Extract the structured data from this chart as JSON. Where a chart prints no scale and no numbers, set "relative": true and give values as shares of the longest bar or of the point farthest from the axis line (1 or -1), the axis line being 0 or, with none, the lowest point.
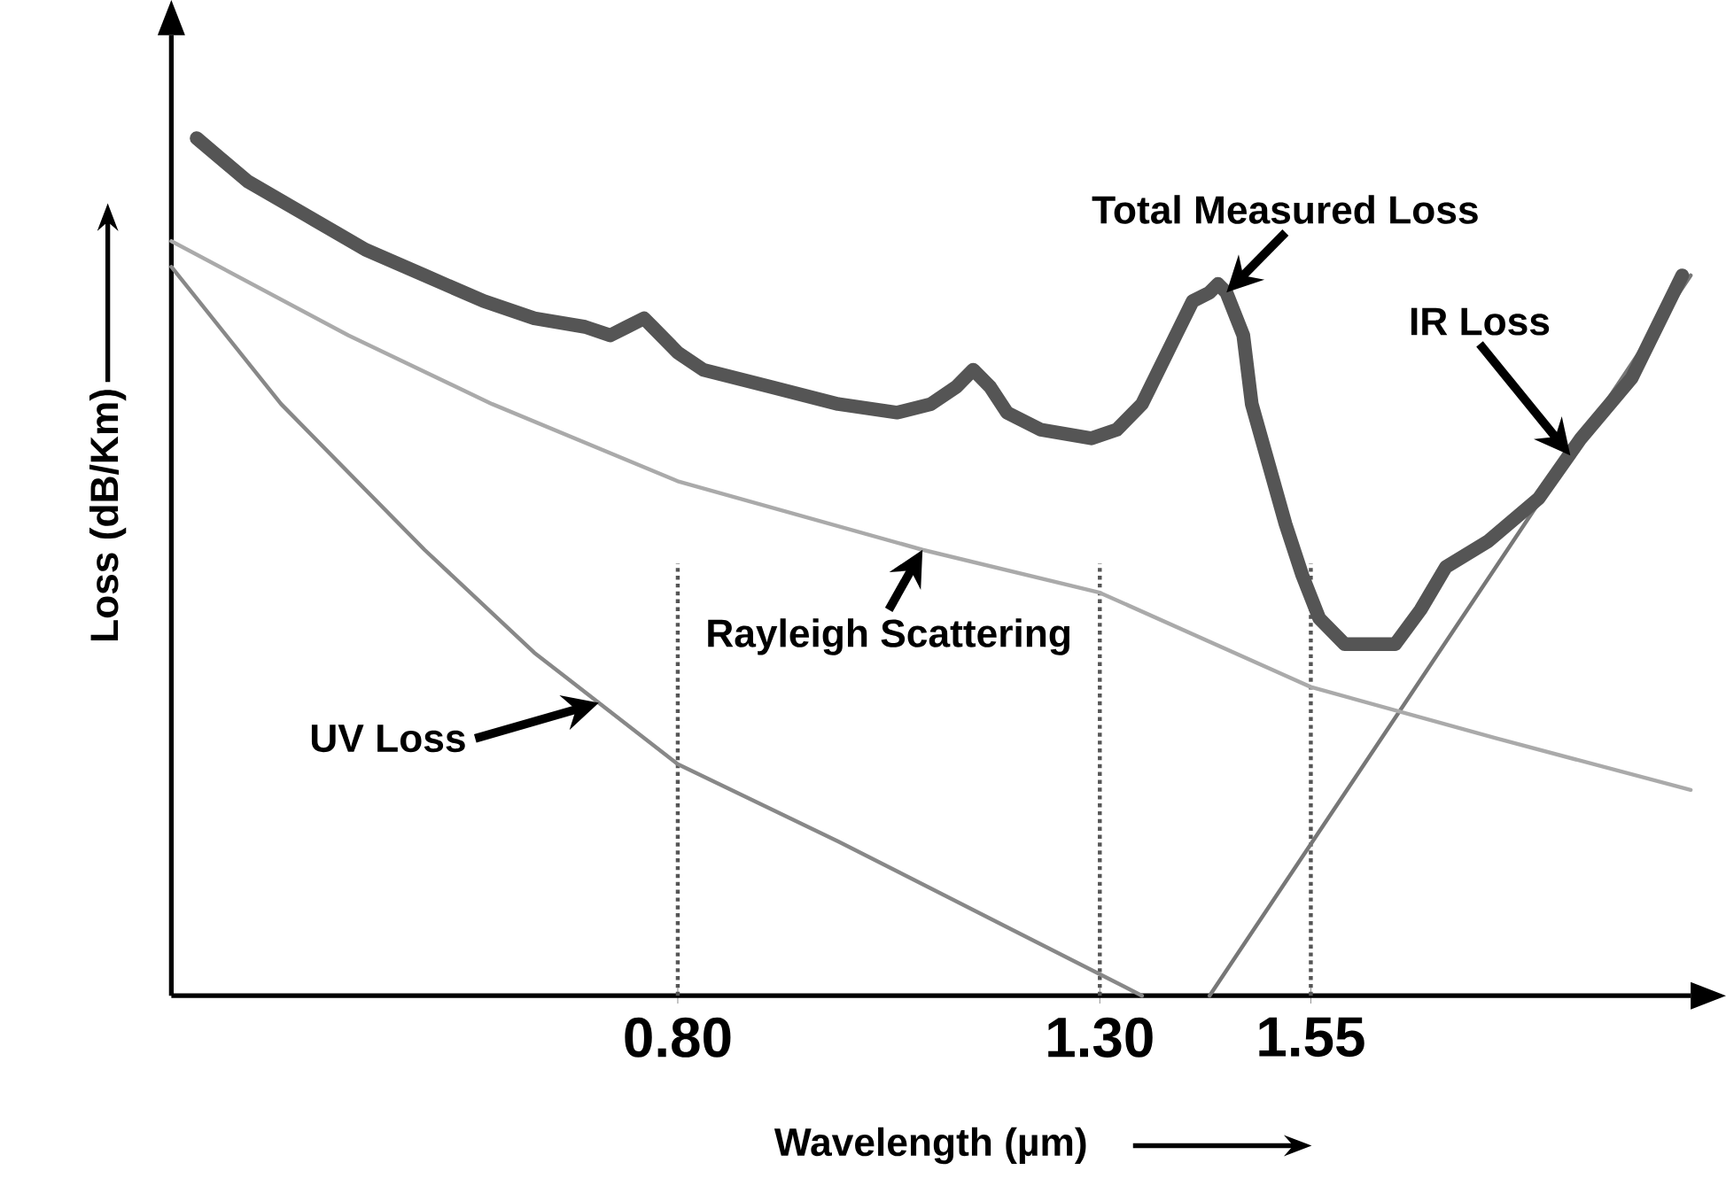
{
  "chart_data": {
    "type": "line",
    "relative": true,
    "xlabel": "Wavelength (µm)",
    "ylabel": "Loss (dB/Km)",
    "xlim": [
      0.2,
      2.0
    ],
    "xticks": [
      {
        "value": 0.8,
        "label": "0.80"
      },
      {
        "value": 1.3,
        "label": "1.30"
      },
      {
        "value": 1.55,
        "label": "1.55"
      }
    ],
    "tick_labels": "x",
    "series": [
      {
        "name": "Total Measured Loss",
        "color": "#555555",
        "x": [
          0.23,
          0.29,
          0.36,
          0.43,
          0.5,
          0.57,
          0.63,
          0.69,
          0.72,
          0.74,
          0.76,
          0.77,
          0.8,
          0.83,
          0.91,
          0.99,
          1.06,
          1.1,
          1.13,
          1.15,
          1.17,
          1.19,
          1.23,
          1.29,
          1.32,
          1.35,
          1.36,
          1.39,
          1.41,
          1.43,
          1.44,
          1.45,
          1.47,
          1.48,
          1.5,
          1.52,
          1.54,
          1.56,
          1.59,
          1.62,
          1.65,
          1.68,
          1.71,
          1.76,
          1.82,
          1.87,
          1.93,
          1.99
        ],
        "values": [
          1.0,
          0.95,
          0.91,
          0.87,
          0.84,
          0.81,
          0.79,
          0.78,
          0.77,
          0.78,
          0.79,
          0.78,
          0.75,
          0.73,
          0.71,
          0.69,
          0.68,
          0.69,
          0.71,
          0.73,
          0.71,
          0.68,
          0.66,
          0.65,
          0.66,
          0.69,
          0.71,
          0.77,
          0.81,
          0.82,
          0.83,
          0.82,
          0.77,
          0.69,
          0.62,
          0.55,
          0.49,
          0.44,
          0.41,
          0.41,
          0.41,
          0.45,
          0.5,
          0.53,
          0.58,
          0.65,
          0.72,
          0.84
        ]
      },
      {
        "name": "Rayleigh Scattering",
        "color": "#aaaaaa",
        "x": [
          0.2,
          0.41,
          0.58,
          0.8,
          1.09,
          1.3,
          1.55,
          1.77,
          2.0
        ],
        "values": [
          0.88,
          0.77,
          0.69,
          0.6,
          0.52,
          0.47,
          0.36,
          0.3,
          0.24
        ]
      },
      {
        "name": "IR Loss",
        "color": "#777777",
        "x": [
          1.43,
          2.0
        ],
        "values": [
          0,
          0.84
        ]
      },
      {
        "name": "UV Loss",
        "color": "#888888",
        "x": [
          0.2,
          0.33,
          0.5,
          0.63,
          0.8,
          0.99,
          1.19,
          1.35
        ],
        "values": [
          0.85,
          0.69,
          0.52,
          0.4,
          0.27,
          0.18,
          0.08,
          0
        ]
      }
    ],
    "ref_lines": [
      {
        "axis": "x",
        "value": 0.8,
        "line_style": "dotted",
        "color": "#555555"
      },
      {
        "axis": "x",
        "value": 1.3,
        "line_style": "dotted",
        "color": "#555555"
      },
      {
        "axis": "x",
        "value": 1.55,
        "line_style": "dotted",
        "color": "#555555"
      }
    ]
  }
}
